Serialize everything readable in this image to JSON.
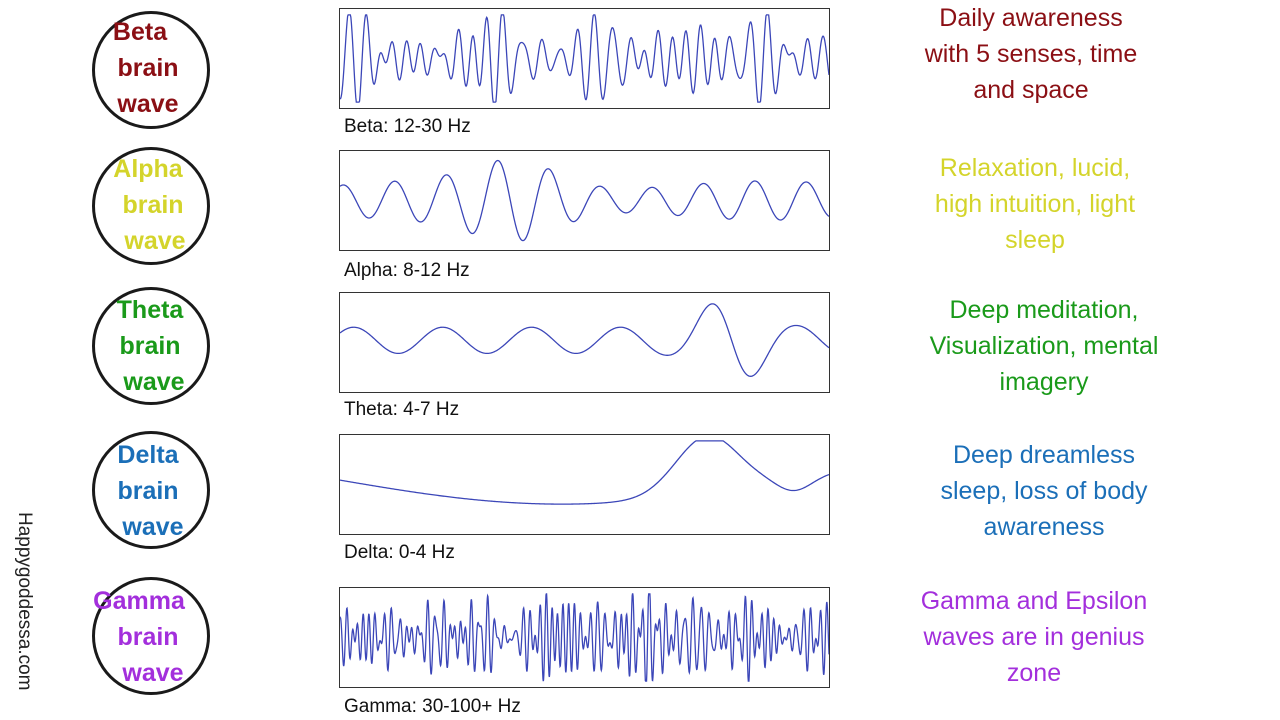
{
  "colors": {
    "beta": "#8b0f14",
    "alpha": "#d4d42b",
    "theta": "#1a9a1a",
    "delta": "#1b6fb8",
    "gamma": "#a32fdc",
    "wave_line": "#3b46b8"
  },
  "waves": [
    {
      "key": "beta",
      "circle_lines": [
        "Beta",
        "brain",
        "wave"
      ],
      "caption": "Beta: 12-30 Hz",
      "description_lines": [
        "Daily awareness",
        "with 5 senses, time",
        "and space"
      ]
    },
    {
      "key": "alpha",
      "circle_lines": [
        "Alpha",
        "brain",
        "wave"
      ],
      "caption": "Alpha: 8-12 Hz",
      "description_lines": [
        "Relaxation, lucid,",
        "high intuition, light",
        "sleep"
      ]
    },
    {
      "key": "theta",
      "circle_lines": [
        "Theta",
        "brain",
        "wave"
      ],
      "caption": "Theta: 4-7 Hz",
      "description_lines": [
        "Deep meditation,",
        "Visualization, mental",
        "imagery"
      ]
    },
    {
      "key": "delta",
      "circle_lines": [
        "Delta",
        "brain",
        "wave"
      ],
      "caption": "Delta: 0-4 Hz",
      "description_lines": [
        "Deep dreamless",
        "sleep, loss of body",
        "awareness"
      ]
    },
    {
      "key": "gamma",
      "circle_lines": [
        "Gamma",
        "brain",
        "wave"
      ],
      "caption": "Gamma: 30-100+ Hz",
      "description_lines": [
        "Gamma and Epsilon",
        "waves are in genius",
        "zone"
      ]
    }
  ],
  "watermark": "Happygoddessa.com"
}
